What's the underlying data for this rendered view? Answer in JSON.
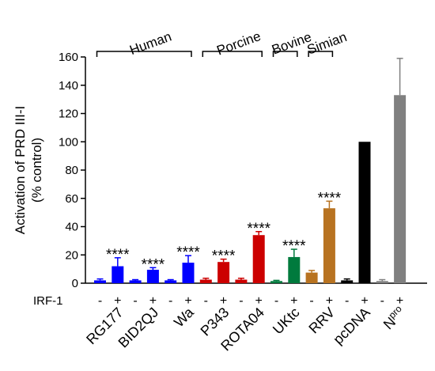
{
  "chart_data": {
    "type": "bar",
    "ylabel_line1": "Activation of PRD III-I",
    "ylabel_line2": "(% control)",
    "ylim": [
      0,
      160
    ],
    "yticks": [
      "0",
      "20",
      "40",
      "60",
      "80",
      "100",
      "120",
      "140",
      "160"
    ],
    "row_label": "IRF-1",
    "bars": [
      {
        "irf": "-",
        "value": 2,
        "error": 1,
        "color": "#0000ff",
        "sig": ""
      },
      {
        "irf": "+",
        "value": 12,
        "error": 6,
        "color": "#0000ff",
        "sig": "****"
      },
      {
        "irf": "-",
        "value": 2,
        "error": 0.5,
        "color": "#0000ff",
        "sig": ""
      },
      {
        "irf": "+",
        "value": 9.5,
        "error": 1.5,
        "color": "#0000ff",
        "sig": "****"
      },
      {
        "irf": "-",
        "value": 2,
        "error": 0.5,
        "color": "#0000ff",
        "sig": ""
      },
      {
        "irf": "+",
        "value": 14.5,
        "error": 5,
        "color": "#0000ff",
        "sig": "****"
      },
      {
        "irf": "-",
        "value": 2.5,
        "error": 1,
        "color": "#cc0000",
        "sig": ""
      },
      {
        "irf": "+",
        "value": 15,
        "error": 2,
        "color": "#cc0000",
        "sig": "****"
      },
      {
        "irf": "-",
        "value": 2.5,
        "error": 1,
        "color": "#cc0000",
        "sig": ""
      },
      {
        "irf": "+",
        "value": 34,
        "error": 2.5,
        "color": "#cc0000",
        "sig": "****"
      },
      {
        "irf": "-",
        "value": 1.5,
        "error": 0.5,
        "color": "#007a3d",
        "sig": ""
      },
      {
        "irf": "+",
        "value": 18.5,
        "error": 5.5,
        "color": "#007a3d",
        "sig": "****"
      },
      {
        "irf": "-",
        "value": 7.5,
        "error": 1.5,
        "color": "#b87321",
        "sig": ""
      },
      {
        "irf": "+",
        "value": 53,
        "error": 5,
        "color": "#b87321",
        "sig": "****"
      },
      {
        "irf": "-",
        "value": 2,
        "error": 1,
        "color": "#000000",
        "sig": ""
      },
      {
        "irf": "+",
        "value": 100,
        "error": 0,
        "color": "#000000",
        "sig": ""
      },
      {
        "irf": "-",
        "value": 1.5,
        "error": 1,
        "color": "#808080",
        "sig": ""
      },
      {
        "irf": "+",
        "value": 133,
        "error": 26,
        "color": "#808080",
        "sig": ""
      }
    ],
    "categories": [
      "RG177",
      "BID2QJ",
      "Wa",
      "P343",
      "ROTA04",
      "UKtc",
      "RRV",
      "pcDNA",
      "N"
    ],
    "npro_superscript": "pro",
    "groups": [
      {
        "label": "Human",
        "from_bar": 1,
        "to_bar": 6
      },
      {
        "label": "Porcine",
        "from_bar": 7,
        "to_bar": 10
      },
      {
        "label": "Bovine",
        "from_bar": 11,
        "to_bar": 12
      },
      {
        "label": "Simian",
        "from_bar": 13,
        "to_bar": 14
      }
    ]
  }
}
